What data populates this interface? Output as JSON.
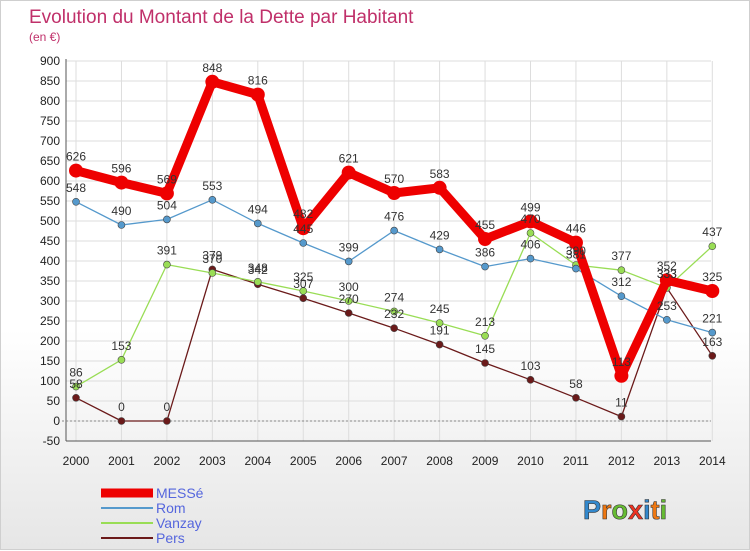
{
  "chart_data": {
    "type": "line",
    "title": "Evolution du Montant de la Dette par Habitant",
    "subtitle": "(en €)",
    "x": [
      2000,
      2001,
      2002,
      2003,
      2004,
      2005,
      2006,
      2007,
      2008,
      2009,
      2010,
      2011,
      2012,
      2013,
      2014
    ],
    "y_ticks": [
      -50,
      0,
      50,
      100,
      150,
      200,
      250,
      300,
      350,
      400,
      450,
      500,
      550,
      600,
      650,
      700,
      750,
      800,
      850,
      900
    ],
    "ylim": [
      -50,
      900
    ],
    "grid": true,
    "legend_position": "bottom-left",
    "series": [
      {
        "name": "Pers",
        "color": "#6b1a1a",
        "values": [
          58,
          0,
          0,
          379,
          342,
          307,
          270,
          232,
          191,
          145,
          103,
          58,
          11,
          333,
          163
        ]
      },
      {
        "name": "Vanzay",
        "color": "#99dd55",
        "values": [
          86,
          153,
          391,
          370,
          348,
          325,
          300,
          274,
          245,
          213,
          470,
          390,
          377,
          333,
          437
        ]
      },
      {
        "name": "Rom",
        "color": "#5599cc",
        "values": [
          548,
          490,
          504,
          553,
          494,
          445,
          399,
          476,
          429,
          386,
          406,
          381,
          312,
          253,
          221
        ]
      },
      {
        "name": "MESSé",
        "color": "#ee0000",
        "values": [
          626,
          596,
          569,
          848,
          816,
          482,
          621,
          570,
          583,
          455,
          499,
          446,
          113,
          352,
          325
        ]
      }
    ],
    "data_labels": [
      {
        "x": 2000,
        "text": "626",
        "series": "MESSé"
      },
      {
        "x": 2001,
        "text": "596",
        "series": "MESSé"
      },
      {
        "x": 2002,
        "text": "569",
        "series": "MESSé"
      },
      {
        "x": 2003,
        "text": "848",
        "series": "MESSé"
      },
      {
        "x": 2004,
        "text": "816",
        "series": "MESSé"
      },
      {
        "x": 2005,
        "text": "482",
        "series": "MESSé"
      },
      {
        "x": 2006,
        "text": "621",
        "series": "MESSé"
      },
      {
        "x": 2007,
        "text": "570",
        "series": "MESSé"
      },
      {
        "x": 2008,
        "text": "583",
        "series": "MESSé"
      },
      {
        "x": 2009,
        "text": "455",
        "series": "MESSé"
      },
      {
        "x": 2010,
        "text": "499",
        "series": "MESSé"
      },
      {
        "x": 2011,
        "text": "446",
        "series": "MESSé"
      },
      {
        "x": 2012,
        "text": "113",
        "series": "MESSé"
      },
      {
        "x": 2013,
        "text": "352",
        "series": "MESSé"
      },
      {
        "x": 2014,
        "text": "325",
        "series": "MESSé"
      },
      {
        "x": 2000,
        "text": "548",
        "series": "Rom"
      },
      {
        "x": 2001,
        "text": "490",
        "series": "Rom"
      },
      {
        "x": 2002,
        "text": "504",
        "series": "Rom"
      },
      {
        "x": 2003,
        "text": "553",
        "series": "Rom"
      },
      {
        "x": 2004,
        "text": "494",
        "series": "Rom"
      },
      {
        "x": 2005,
        "text": "445",
        "series": "Rom"
      },
      {
        "x": 2006,
        "text": "399",
        "series": "Rom"
      },
      {
        "x": 2007,
        "text": "476",
        "series": "Rom"
      },
      {
        "x": 2008,
        "text": "429",
        "series": "Rom"
      },
      {
        "x": 2009,
        "text": "386",
        "series": "Rom"
      },
      {
        "x": 2010,
        "text": "406",
        "series": "Rom"
      },
      {
        "x": 2011,
        "text": "381",
        "series": "Rom"
      },
      {
        "x": 2012,
        "text": "312",
        "series": "Rom"
      },
      {
        "x": 2013,
        "text": "253",
        "series": "Rom"
      },
      {
        "x": 2014,
        "text": "221",
        "series": "Rom"
      },
      {
        "x": 2000,
        "text": "86",
        "series": "Vanzay"
      },
      {
        "x": 2001,
        "text": "153",
        "series": "Vanzay"
      },
      {
        "x": 2002,
        "text": "391",
        "series": "Vanzay"
      },
      {
        "x": 2003,
        "text": "370",
        "series": "Vanzay"
      },
      {
        "x": 2004,
        "text": "348",
        "series": "Vanzay"
      },
      {
        "x": 2005,
        "text": "325",
        "series": "Vanzay"
      },
      {
        "x": 2006,
        "text": "300",
        "series": "Vanzay"
      },
      {
        "x": 2007,
        "text": "274",
        "series": "Vanzay"
      },
      {
        "x": 2008,
        "text": "245",
        "series": "Vanzay"
      },
      {
        "x": 2009,
        "text": "213",
        "series": "Vanzay"
      },
      {
        "x": 2010,
        "text": "470",
        "series": "Vanzay"
      },
      {
        "x": 2011,
        "text": "390",
        "series": "Vanzay"
      },
      {
        "x": 2012,
        "text": "377",
        "series": "Vanzay"
      },
      {
        "x": 2013,
        "text": "333",
        "series": "Vanzay"
      },
      {
        "x": 2014,
        "text": "437",
        "series": "Vanzay"
      },
      {
        "x": 2000,
        "text": "58",
        "series": "Pers"
      },
      {
        "x": 2001,
        "text": "0",
        "series": "Pers"
      },
      {
        "x": 2002,
        "text": "0",
        "series": "Pers"
      },
      {
        "x": 2003,
        "text": "379",
        "series": "Pers"
      },
      {
        "x": 2004,
        "text": "342",
        "series": "Pers"
      },
      {
        "x": 2005,
        "text": "307",
        "series": "Pers"
      },
      {
        "x": 2006,
        "text": "270",
        "series": "Pers"
      },
      {
        "x": 2007,
        "text": "232",
        "series": "Pers"
      },
      {
        "x": 2008,
        "text": "191",
        "series": "Pers"
      },
      {
        "x": 2009,
        "text": "145",
        "series": "Pers"
      },
      {
        "x": 2010,
        "text": "103",
        "series": "Pers"
      },
      {
        "x": 2011,
        "text": "58",
        "series": "Pers"
      },
      {
        "x": 2012,
        "text": "11",
        "series": "Pers"
      },
      {
        "x": 2013,
        "text": "333",
        "series": "Pers"
      },
      {
        "x": 2014,
        "text": "163",
        "series": "Pers"
      }
    ]
  },
  "legend": [
    {
      "name": "MESSé",
      "color": "#ee0000",
      "text_color": "#5566dd"
    },
    {
      "name": "Rom",
      "color": "#5599cc",
      "text_color": "#5566dd"
    },
    {
      "name": "Vanzay",
      "color": "#99dd55",
      "text_color": "#5566dd"
    },
    {
      "name": "Pers",
      "color": "#6b1a1a",
      "text_color": "#5566dd"
    }
  ],
  "logo": {
    "letters": [
      {
        "char": "P",
        "color": "#3388cc"
      },
      {
        "char": "r",
        "color": "#ee7711"
      },
      {
        "char": "o",
        "color": "#66bb33"
      },
      {
        "char": "x",
        "color": "#ee3322"
      },
      {
        "char": "i",
        "color": "#3388cc"
      },
      {
        "char": "t",
        "color": "#ee7711"
      },
      {
        "char": "i",
        "color": "#66bb33"
      }
    ]
  }
}
